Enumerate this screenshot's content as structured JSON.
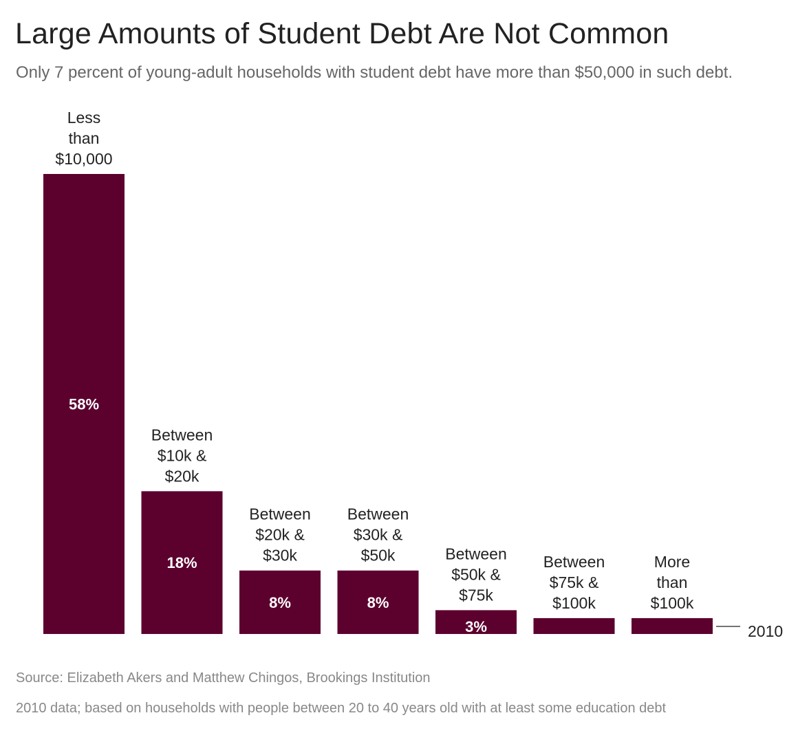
{
  "header": {
    "title": "Large Amounts of Student Debt Are Not Common",
    "subtitle": "Only 7 percent of young-adult households with student debt have more than $50,000 in such debt."
  },
  "chart_data": {
    "type": "bar",
    "categories": [
      [
        "Less",
        "than",
        "$10,000"
      ],
      [
        "Between",
        "$10k &",
        "$20k"
      ],
      [
        "Between",
        "$20k &",
        "$30k"
      ],
      [
        "Between",
        "$30k &",
        "$50k"
      ],
      [
        "Between",
        "$50k &",
        "$75k"
      ],
      [
        "Between",
        "$75k &",
        "$100k"
      ],
      [
        "More",
        "than",
        "$100k"
      ]
    ],
    "values": [
      58,
      18,
      8,
      8,
      3,
      2,
      2
    ],
    "value_labels": [
      "58%",
      "18%",
      "8%",
      "8%",
      "3%",
      "",
      ""
    ],
    "series_label": "2010",
    "ylim": [
      0,
      58
    ],
    "bar_color": "#5c002e",
    "grid": false
  },
  "footer": {
    "source": "Source: Elizabeth Akers and Matthew Chingos, Brookings Institution",
    "note": "2010 data; based on households with people between 20 to 40 years old with at least some education debt"
  }
}
